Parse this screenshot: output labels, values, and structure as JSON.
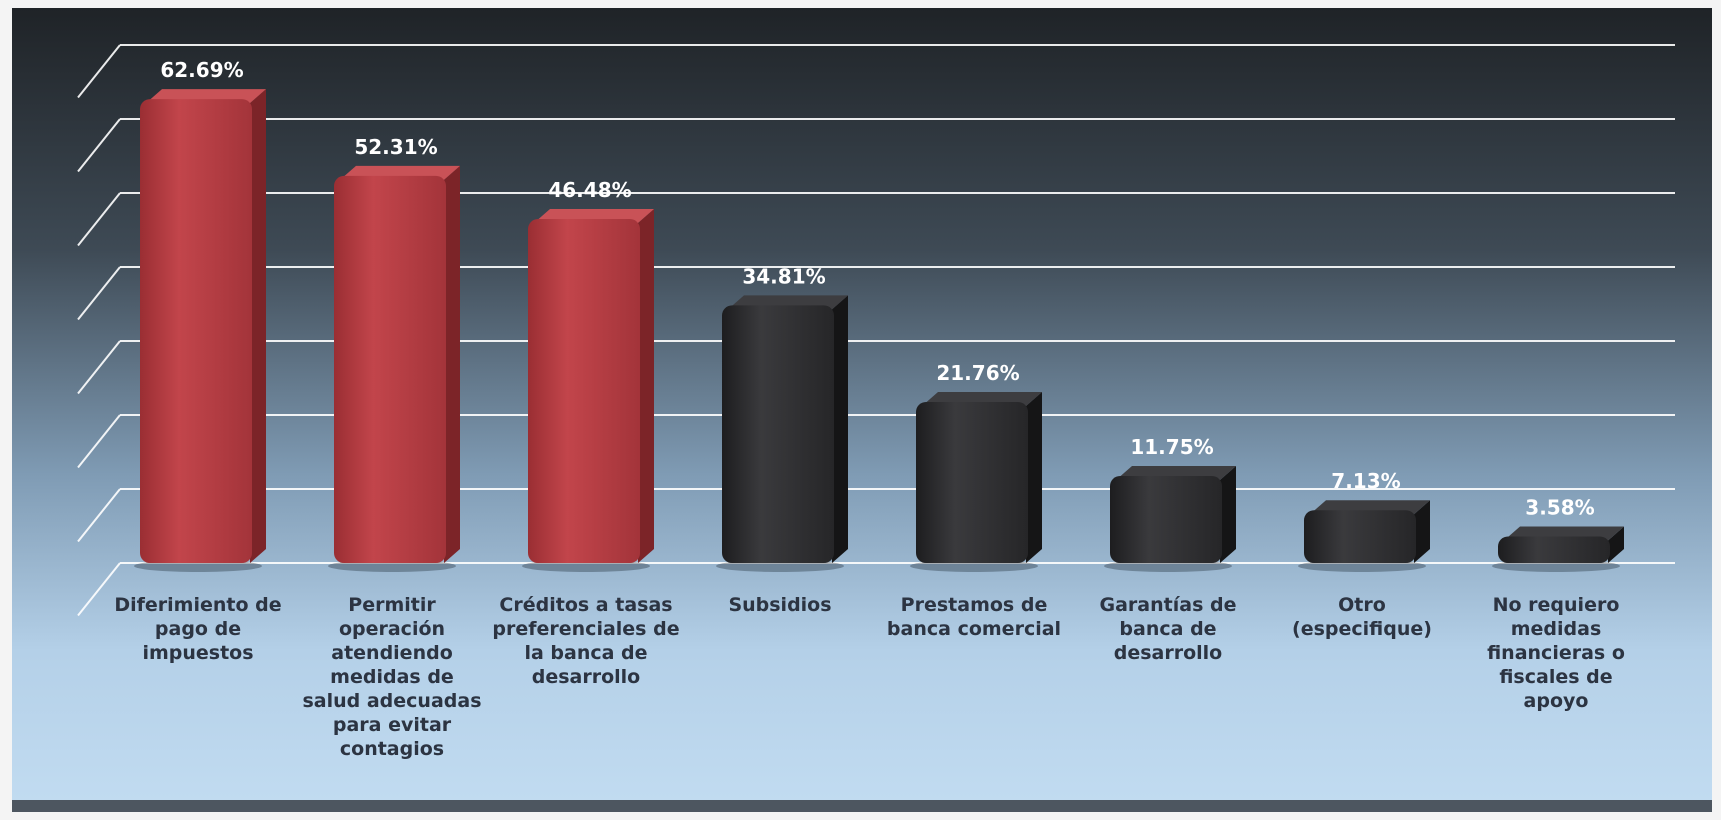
{
  "chart_data": {
    "type": "bar",
    "categories": [
      "Diferimiento de\npago de\nimpuestos",
      "Permitir\noperación\natendiendo\nmedidas de\nsalud adecuadas\npara evitar\ncontagios",
      "Créditos a tasas\npreferenciales de\nla banca de\ndesarrollo",
      "Subsidios",
      "Prestamos de\nbanca comercial",
      "Garantías de\nbanca de\ndesarrollo",
      "Otro\n(especifique)",
      "No requiero\nmedidas\nfinancieras o\nfiscales de\napoyo"
    ],
    "values": [
      62.69,
      52.31,
      46.48,
      34.81,
      21.76,
      11.75,
      7.13,
      3.58
    ],
    "data_labels": [
      "62.69%",
      "52.31%",
      "46.48%",
      "34.81%",
      "21.76%",
      "11.75%",
      "7.13%",
      "3.58%"
    ],
    "bar_colors": [
      "#b23a40",
      "#b23a40",
      "#b23a40",
      "#2a2a2c",
      "#2a2a2c",
      "#2a2a2c",
      "#2a2a2c",
      "#2a2a2c"
    ],
    "ylim": [
      0,
      70
    ],
    "grid": true,
    "legend": "none",
    "title": "",
    "xlabel": "",
    "ylabel": ""
  }
}
